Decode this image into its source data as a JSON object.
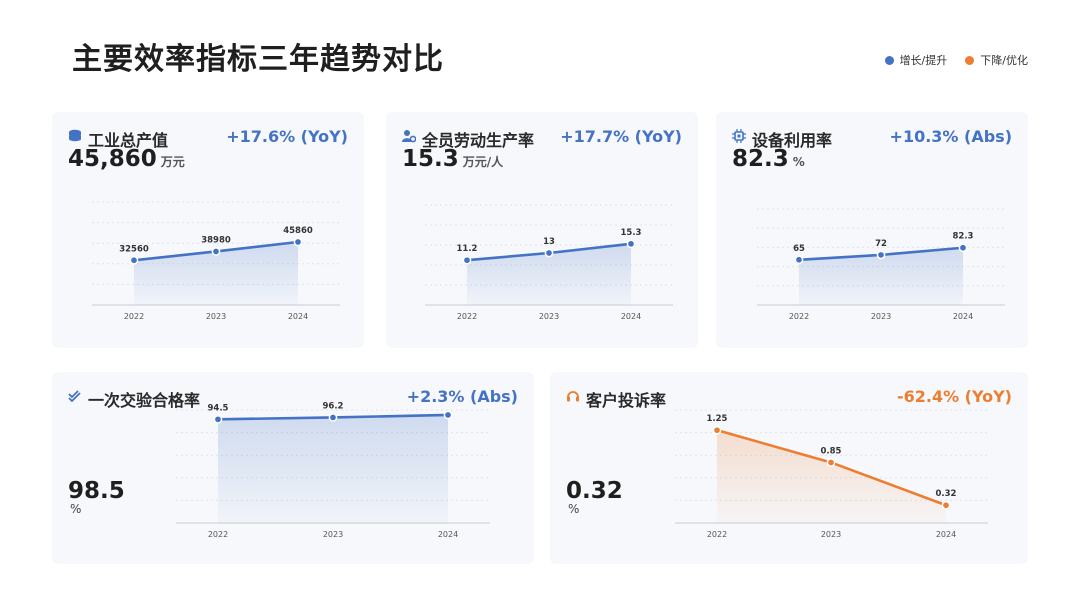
{
  "title": "主要效率指标三年趋势对比",
  "legend": {
    "increase": {
      "label": "增长/提升",
      "color": "#4472c4"
    },
    "decrease": {
      "label": "下降/优化",
      "color": "#ed7d31"
    }
  },
  "cards": [
    {
      "title": "工业总产值",
      "icon": "coins-icon",
      "change": "+17.6% (YoY)",
      "value": "45,860",
      "unit": "万元",
      "color": "#4472c4"
    },
    {
      "title": "全员劳动生产率",
      "icon": "user-gear-icon",
      "change": "+17.7% (YoY)",
      "value": "15.3",
      "unit": "万元/人",
      "color": "#4472c4"
    },
    {
      "title": "设备利用率",
      "icon": "chip-icon",
      "change": "+10.3% (Abs)",
      "value": "82.3",
      "unit": "%",
      "color": "#4472c4"
    },
    {
      "title": "一次交验合格率",
      "icon": "double-check-icon",
      "change": "+2.3% (Abs)",
      "value": "98.5",
      "unit": "%",
      "color": "#4472c4"
    },
    {
      "title": "客户投诉率",
      "icon": "headset-icon",
      "change": "-62.4% (YoY)",
      "value": "0.32",
      "unit": "%",
      "color": "#ed7d31"
    }
  ],
  "chart_data": [
    {
      "type": "area",
      "categories": [
        "2022",
        "2023",
        "2024"
      ],
      "values": [
        32560,
        38980,
        45860
      ],
      "labels": [
        "32560",
        "38980",
        "45860"
      ],
      "ylim": [
        0,
        75000
      ],
      "color": "#4472c4"
    },
    {
      "type": "area",
      "categories": [
        "2022",
        "2023",
        "2024"
      ],
      "values": [
        11.2,
        13,
        15.3
      ],
      "labels": [
        "11.2",
        "13",
        "15.3"
      ],
      "ylim": [
        0,
        25
      ],
      "color": "#4472c4"
    },
    {
      "type": "area",
      "categories": [
        "2022",
        "2023",
        "2024"
      ],
      "values": [
        65,
        72,
        82.3
      ],
      "labels": [
        "65",
        "72",
        "82.3"
      ],
      "ylim": [
        0,
        138
      ],
      "color": "#4472c4"
    },
    {
      "type": "area",
      "categories": [
        "2022",
        "2023",
        "2024"
      ],
      "values": [
        94.5,
        96.2,
        98.5
      ],
      "labels": [
        "94.5",
        "96.2"
      ],
      "ylim": [
        0,
        103
      ],
      "color": "#4472c4"
    },
    {
      "type": "area",
      "categories": [
        "2022",
        "2023",
        "2024"
      ],
      "values": [
        1.25,
        0.85,
        0.32
      ],
      "labels": [
        "1.25",
        "0.85",
        "0.32"
      ],
      "ylim": [
        0.1,
        1.5
      ],
      "color": "#ed7d31"
    }
  ]
}
